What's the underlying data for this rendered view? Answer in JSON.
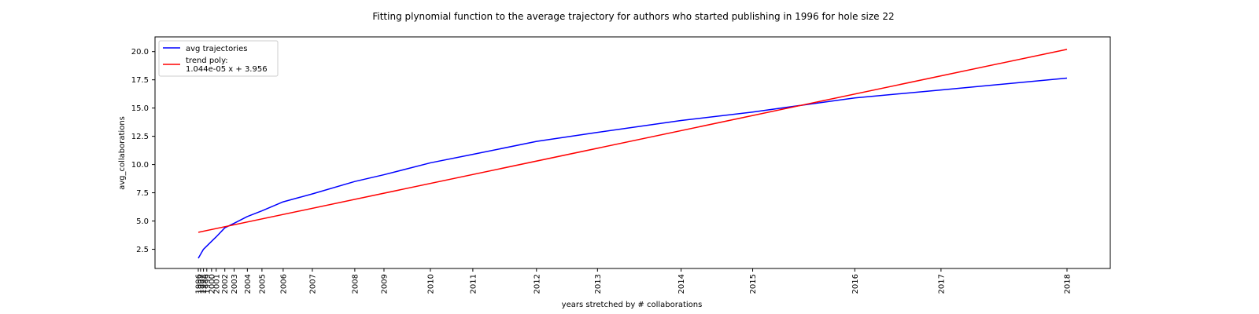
{
  "chart_data": {
    "type": "line",
    "title": "Fitting plynomial function to the average trajectory for authors who started publishing in 1996 for hole size 22",
    "xlabel": "years stretched by # collaborations",
    "ylabel": "avg_collaborations",
    "ylim": [
      0.8,
      21.3
    ],
    "yticks": [
      2.5,
      5.0,
      7.5,
      10.0,
      12.5,
      15.0,
      17.5,
      20.0
    ],
    "x_ticks": [
      {
        "pos": 0,
        "label": "1996"
      },
      {
        "pos": 1.7,
        "label": "1997"
      },
      {
        "pos": 3.9,
        "label": "1998"
      },
      {
        "pos": 6.4,
        "label": "1999"
      },
      {
        "pos": 10,
        "label": "2000"
      },
      {
        "pos": 13.5,
        "label": "2001"
      },
      {
        "pos": 20,
        "label": "2002"
      },
      {
        "pos": 27,
        "label": "2003"
      },
      {
        "pos": 37,
        "label": "2004"
      },
      {
        "pos": 48,
        "label": "2005"
      },
      {
        "pos": 64,
        "label": "2006"
      },
      {
        "pos": 86,
        "label": "2007"
      },
      {
        "pos": 118,
        "label": "2008"
      },
      {
        "pos": 140,
        "label": "2009"
      },
      {
        "pos": 175,
        "label": "2010"
      },
      {
        "pos": 207,
        "label": "2011"
      },
      {
        "pos": 255,
        "label": "2012"
      },
      {
        "pos": 301,
        "label": "2013"
      },
      {
        "pos": 364,
        "label": "2014"
      },
      {
        "pos": 418,
        "label": "2015"
      },
      {
        "pos": 495,
        "label": "2016"
      },
      {
        "pos": 560,
        "label": "2017"
      },
      {
        "pos": 655,
        "label": "2018"
      }
    ],
    "series": [
      {
        "name": "avg trajectories",
        "color": "#0000ff",
        "x": [
          0,
          3.9,
          10,
          13.5,
          20,
          27,
          37,
          48,
          64,
          86,
          118,
          140,
          175,
          207,
          255,
          301,
          364,
          418,
          495,
          560,
          655
        ],
        "values": [
          1.7,
          2.5,
          3.2,
          3.6,
          4.4,
          4.8,
          5.4,
          5.9,
          6.7,
          7.4,
          8.5,
          9.1,
          10.15,
          10.9,
          12.05,
          12.85,
          13.9,
          14.65,
          15.9,
          16.6,
          17.65
        ]
      },
      {
        "name": "trend poly:\n1.044e-05 x + 3.956",
        "color": "#ff0000",
        "x": [
          0,
          655
        ],
        "values": [
          4.0,
          20.2
        ]
      }
    ],
    "legend": {
      "position": "top-left",
      "entries": [
        "avg trajectories",
        "trend poly:",
        "1.044e-05 x + 3.956"
      ]
    }
  }
}
